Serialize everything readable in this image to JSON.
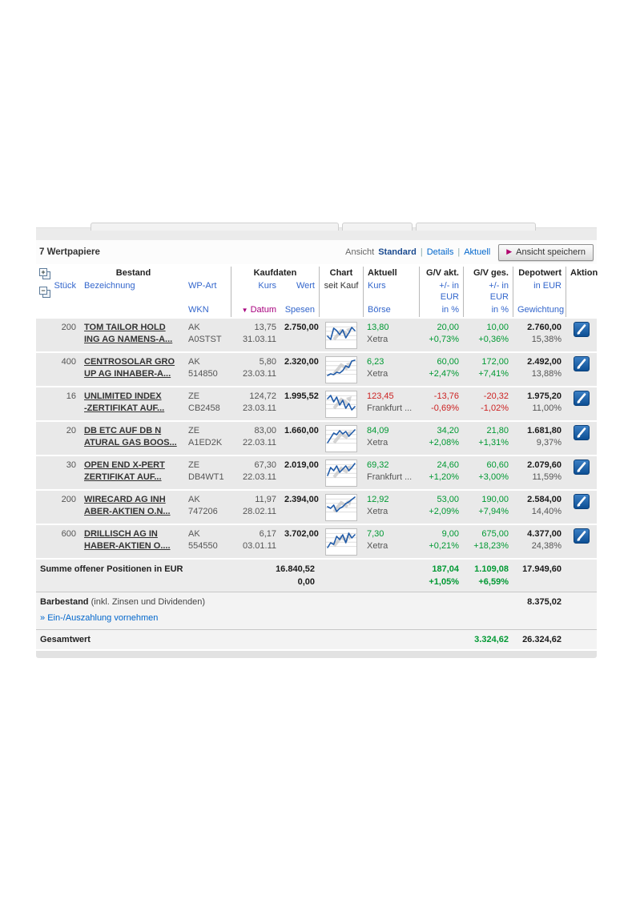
{
  "colors": {
    "positive": "#009933",
    "negative": "#cc2222",
    "link": "#0066cc",
    "accent_magenta": "#a8007e",
    "action_blue": "#0d4f94"
  },
  "toolbar": {
    "count_label": "7 Wertpapiere",
    "ansicht_label": "Ansicht",
    "views": [
      {
        "label": "Standard",
        "active": true
      },
      {
        "label": "Details",
        "active": false
      },
      {
        "label": "Aktuell",
        "active": false
      }
    ],
    "save_view_button": "Ansicht speichern",
    "save_view_arrow": "▶"
  },
  "table": {
    "groups": {
      "bestand": "Bestand",
      "kaufdaten": "Kaufdaten",
      "chart": "Chart",
      "aktuell": "Aktuell",
      "gv_akt": "G/V akt.",
      "gv_ges": "G/V ges.",
      "depotwert": "Depotwert",
      "aktion": "Aktion"
    },
    "sub": {
      "stueck": "Stück",
      "bezeichnung": "Bezeichnung",
      "wp_art": "WP-Art",
      "wkn": "WKN",
      "kurs": "Kurs",
      "datum": "Datum",
      "wert": "Wert",
      "spesen": "Spesen",
      "seit_kauf": "seit Kauf",
      "kurs_aktuell": "Kurs",
      "boerse": "Börse",
      "plus_minus_eur": "+/- in EUR",
      "in_pct": "in %",
      "in_eur": "in EUR",
      "gewichtung": "Gewichtung"
    },
    "sort_indicator": "▼",
    "rows": [
      {
        "stueck": "200",
        "name1": "TOM TAILOR HOLD",
        "name2": "ING AG NAMENS-A...",
        "wp_art": "AK",
        "wkn": "A0STST",
        "kurs": "13,75",
        "datum": "31.03.11",
        "wert": "2.750,00",
        "kurs_akt": "13,80",
        "boerse": "Xetra",
        "gv_akt": "20,00",
        "gv_akt_pct": "+0,73%",
        "gv_ges": "10,00",
        "gv_ges_pct": "+0,36%",
        "depotwert": "2.760,00",
        "gewichtung": "15,38%",
        "negative": false,
        "spark": [
          16,
          20,
          6,
          9,
          14,
          8,
          18,
          12,
          5,
          9
        ]
      },
      {
        "stueck": "400",
        "name1": "CENTROSOLAR GRO",
        "name2": "UP AG INHABER-A...",
        "wp_art": "AK",
        "wkn": "514850",
        "kurs": "5,80",
        "datum": "23.03.11",
        "wert": "2.320,00",
        "kurs_akt": "6,23",
        "boerse": "Xetra",
        "gv_akt": "60,00",
        "gv_akt_pct": "+2,47%",
        "gv_ges": "172,00",
        "gv_ges_pct": "+7,41%",
        "depotwert": "2.492,00",
        "gewichtung": "13,88%",
        "negative": false,
        "spark": [
          22,
          20,
          21,
          18,
          19,
          16,
          10,
          12,
          4,
          3
        ]
      },
      {
        "stueck": "16",
        "name1": "UNLIMITED INDEX",
        "name2": "-ZERTIFIKAT AUF...",
        "wp_art": "ZE",
        "wkn": "CB2458",
        "kurs": "124,72",
        "datum": "23.03.11",
        "wert": "1.995,52",
        "kurs_akt": "123,45",
        "boerse": "Frankfurt ...",
        "gv_akt": "-13,76",
        "gv_akt_pct": "-0,69%",
        "gv_ges": "-20,32",
        "gv_ges_pct": "-1,02%",
        "depotwert": "1.975,20",
        "gewichtung": "11,00%",
        "negative": true,
        "spark": [
          8,
          4,
          12,
          6,
          16,
          10,
          20,
          14,
          22,
          18
        ]
      },
      {
        "stueck": "20",
        "name1": "DB ETC AUF DB N",
        "name2": "ATURAL GAS BOOS...",
        "wp_art": "ZE",
        "wkn": "A1ED2K",
        "kurs": "83,00",
        "datum": "22.03.11",
        "wert": "1.660,00",
        "kurs_akt": "84,09",
        "boerse": "Xetra",
        "gv_akt": "34,20",
        "gv_akt_pct": "+2,08%",
        "gv_ges": "21,80",
        "gv_ges_pct": "+1,31%",
        "depotwert": "1.681,80",
        "gewichtung": "9,37%",
        "negative": false,
        "spark": [
          20,
          14,
          8,
          10,
          5,
          9,
          6,
          12,
          8,
          4
        ]
      },
      {
        "stueck": "30",
        "name1": "OPEN END X-PERT",
        "name2": "ZERTIFIKAT AUF...",
        "wp_art": "ZE",
        "wkn": "DB4WT1",
        "kurs": "67,30",
        "datum": "22.03.11",
        "wert": "2.019,00",
        "kurs_akt": "69,32",
        "boerse": "Frankfurt ...",
        "gv_akt": "24,60",
        "gv_akt_pct": "+1,20%",
        "gv_ges": "60,60",
        "gv_ges_pct": "+3,00%",
        "depotwert": "2.079,60",
        "gewichtung": "11,59%",
        "negative": false,
        "spark": [
          18,
          8,
          12,
          6,
          14,
          10,
          6,
          12,
          8,
          3
        ]
      },
      {
        "stueck": "200",
        "name1": "WIRECARD AG INH",
        "name2": "ABER-AKTIEN O.N...",
        "wp_art": "AK",
        "wkn": "747206",
        "kurs": "11,97",
        "datum": "28.02.11",
        "wert": "2.394,00",
        "kurs_akt": "12,92",
        "boerse": "Xetra",
        "gv_akt": "53,00",
        "gv_akt_pct": "+2,09%",
        "gv_ges": "190,00",
        "gv_ges_pct": "+7,94%",
        "depotwert": "2.584,00",
        "gewichtung": "14,40%",
        "negative": false,
        "spark": [
          14,
          16,
          12,
          20,
          16,
          14,
          10,
          8,
          5,
          2
        ]
      },
      {
        "stueck": "600",
        "name1": "DRILLISCH AG IN",
        "name2": "HABER-AKTIEN O....",
        "wp_art": "AK",
        "wkn": "554550",
        "kurs": "6,17",
        "datum": "03.01.11",
        "wert": "3.702,00",
        "kurs_akt": "7,30",
        "boerse": "Xetra",
        "gv_akt": "9,00",
        "gv_akt_pct": "+0,21%",
        "gv_ges": "675,00",
        "gv_ges_pct": "+18,23%",
        "depotwert": "4.377,00",
        "gewichtung": "24,38%",
        "negative": false,
        "spark": [
          22,
          16,
          18,
          8,
          12,
          6,
          16,
          4,
          10,
          6
        ]
      }
    ]
  },
  "footer": {
    "summe": {
      "label": "Summe offener Positionen in EUR",
      "wert": "16.840,52",
      "spesen": "0,00",
      "gv_akt": "187,04",
      "gv_akt_pct": "+1,05%",
      "gv_ges": "1.109,08",
      "gv_ges_pct": "+6,59%",
      "depotwert": "17.949,60"
    },
    "barbestand": {
      "label_bold": "Barbestand",
      "label_rest": "(inkl. Zinsen und Dividenden)",
      "value": "8.375,02",
      "link_prefix": "»",
      "link": "Ein-/Auszahlung vornehmen"
    },
    "gesamtwert": {
      "label": "Gesamtwert",
      "gv": "3.324,62",
      "value": "26.324,62"
    }
  }
}
